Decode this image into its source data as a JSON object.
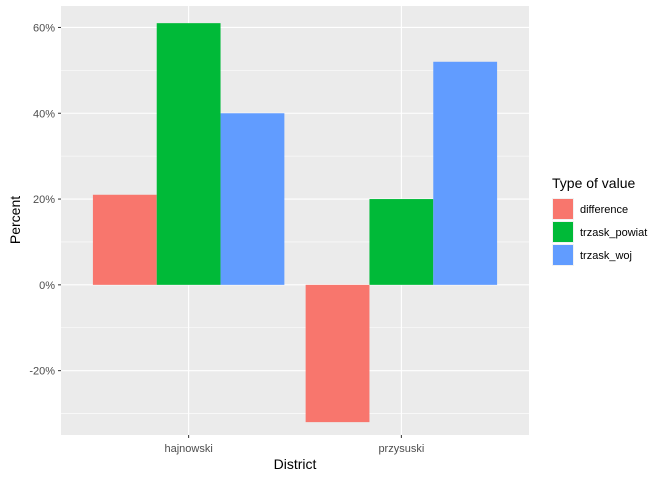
{
  "chart_data": {
    "type": "bar",
    "categories": [
      "hajnowski",
      "przysuski"
    ],
    "series": [
      {
        "name": "difference",
        "color": "#F8766D",
        "values": [
          21,
          -32
        ]
      },
      {
        "name": "trzask_powiat",
        "color": "#00BA38",
        "values": [
          61,
          20
        ]
      },
      {
        "name": "trzask_woj",
        "color": "#619CFF",
        "values": [
          40,
          52
        ]
      }
    ],
    "title": "",
    "xlabel": "District",
    "ylabel": "Percent",
    "ylim": [
      -35,
      65
    ],
    "yticks": [
      -20,
      0,
      20,
      40,
      60
    ],
    "ytick_labels": [
      "-20%",
      "0%",
      "20%",
      "40%",
      "60%"
    ],
    "grid": true,
    "legend": {
      "title": "Type of value",
      "position": "right"
    },
    "panel_background": "#EBEBEB",
    "grid_color": "#FFFFFF"
  }
}
